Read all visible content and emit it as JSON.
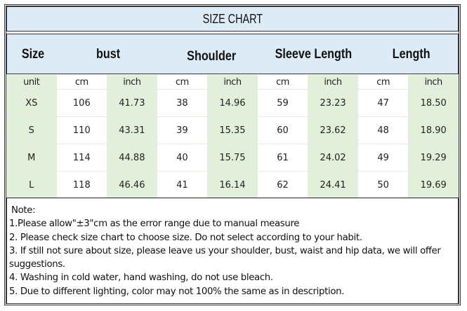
{
  "title": "SIZE CHART",
  "headers": [
    "Size",
    "bust",
    "Shoulder",
    "Sleeve Length",
    "Length"
  ],
  "units": [
    "unit",
    "cm",
    "inch",
    "cm",
    "inch",
    "cm",
    "inch",
    "cm",
    "inch"
  ],
  "rows": [
    [
      "XS",
      "106",
      "41.73",
      "38",
      "14.96",
      "59",
      "23.23",
      "47",
      "18.50"
    ],
    [
      "S",
      "110",
      "43.31",
      "39",
      "15.35",
      "60",
      "23.62",
      "48",
      "18.90"
    ],
    [
      "M",
      "114",
      "44.88",
      "40",
      "15.75",
      "61",
      "24.02",
      "49",
      "19.29"
    ],
    [
      "L",
      "118",
      "46.46",
      "41",
      "16.14",
      "62",
      "24.41",
      "50",
      "19.69"
    ]
  ],
  "notes": [
    "Note:",
    "1.Please allow\"±3\"cm as the error range due to manual measure",
    "2. Please check size chart to choose size. Do not select according to your habit.",
    "3. If still not sure about size, please leave us your shoulder, bust, waist and hip data, we will offer suggestions.",
    "4. Washing in cold water, hand washing, do not use bleach.",
    "5. Due to different lighting, color may not 100% the same as in description."
  ],
  "colors": {
    "header_bg": "#ddebf7",
    "green_col": "#e2efda"
  }
}
